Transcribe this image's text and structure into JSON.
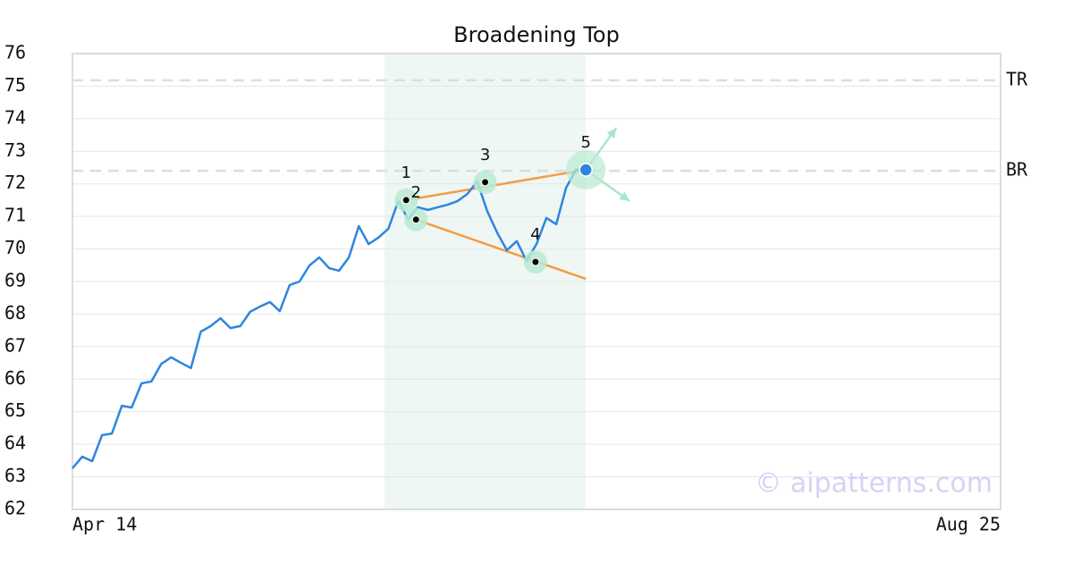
{
  "chart_data": {
    "type": "line",
    "title": "Broadening Top",
    "xlim": [
      0,
      94
    ],
    "xticks": [
      {
        "value": 0,
        "label": "Apr 14"
      },
      {
        "value": 94,
        "label": "Aug 25"
      }
    ],
    "ylim": [
      62,
      76
    ],
    "yticks": [
      62,
      63,
      64,
      65,
      66,
      67,
      68,
      69,
      70,
      71,
      72,
      73,
      74,
      75,
      76
    ],
    "grid": true,
    "series": [
      {
        "color": "#2e86de",
        "x": [
          0,
          1,
          2,
          3,
          4,
          5,
          6,
          7,
          8,
          9,
          10,
          11,
          12,
          13,
          14,
          15,
          16,
          17,
          18,
          19,
          20,
          21,
          22,
          23,
          24,
          25,
          26,
          27,
          28,
          29,
          30,
          31,
          32,
          33,
          34,
          35,
          36,
          37,
          38,
          39,
          40,
          41,
          42,
          43,
          44,
          45,
          46,
          47,
          48,
          49,
          50,
          51,
          52
        ],
        "values": [
          63.26,
          63.62,
          63.48,
          64.28,
          64.33,
          65.18,
          65.13,
          65.87,
          65.93,
          66.47,
          66.67,
          66.5,
          66.34,
          67.46,
          67.63,
          67.87,
          67.57,
          67.63,
          68.07,
          68.23,
          68.37,
          68.09,
          68.89,
          69.0,
          69.49,
          69.74,
          69.41,
          69.33,
          69.74,
          70.7,
          70.15,
          70.35,
          70.62,
          71.47,
          70.92,
          71.28,
          71.2,
          71.28,
          71.36,
          71.47,
          71.69,
          72.07,
          71.17,
          70.51,
          69.96,
          70.24,
          69.63,
          70.15,
          70.95,
          70.76,
          71.88,
          72.43,
          72.43
        ]
      }
    ],
    "highlight": [
      31.6,
      52
    ],
    "points": [
      {
        "label": "1",
        "x": 33.8,
        "value": 71.5
      },
      {
        "label": "2",
        "x": 34.8,
        "value": 70.9
      },
      {
        "label": "3",
        "x": 41.8,
        "value": 72.05
      },
      {
        "label": "4",
        "x": 46.9,
        "value": 69.6
      },
      {
        "label": "5",
        "x": 52,
        "value": 72.43
      }
    ],
    "trendlines": [
      {
        "color": "#f39c45",
        "x": [
          33.8,
          52
        ],
        "values": [
          71.5,
          72.43
        ]
      },
      {
        "color": "#f39c45",
        "x": [
          34.8,
          52
        ],
        "values": [
          70.9,
          69.08
        ]
      }
    ],
    "levels": [
      {
        "label": "TR",
        "value": 75.18
      },
      {
        "label": "BR",
        "value": 72.4
      }
    ],
    "watermark": "© aipatterns.com"
  }
}
